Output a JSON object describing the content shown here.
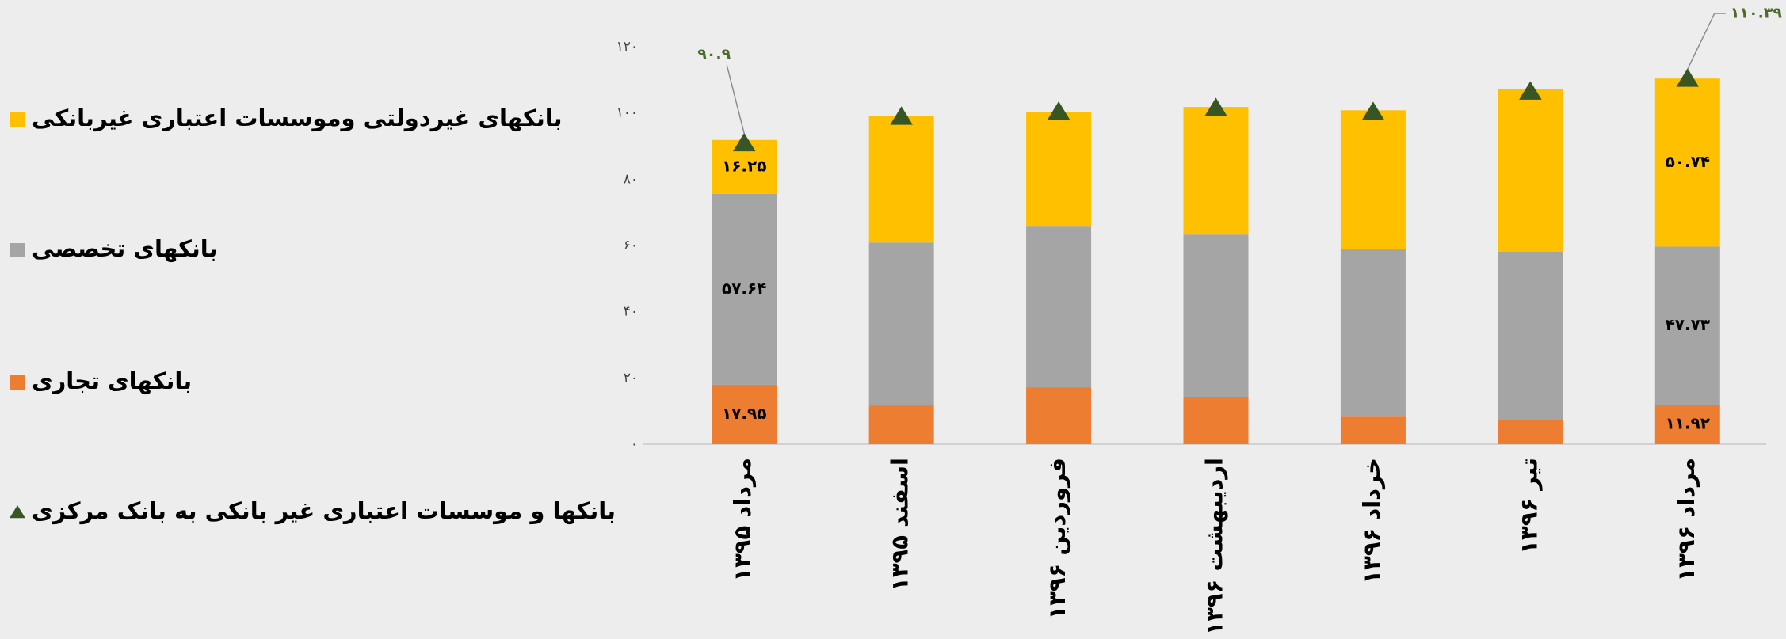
{
  "chart_data": {
    "type": "bar",
    "stacked": true,
    "categories": [
      "مرداد ۱۳۹۵",
      "اسفند ۱۳۹۵",
      "فروردین ۱۳۹۶",
      "اردیبهشت ۱۳۹۶",
      "خرداد ۱۳۹۶",
      "تیر ۱۳۹۶",
      "مرداد ۱۳۹۶"
    ],
    "series": [
      {
        "name": "بانکهای تجاری",
        "color": "#ED7D31",
        "type": "bar",
        "values": [
          17.95,
          11.7,
          17.2,
          14.1,
          8.3,
          7.6,
          11.92
        ],
        "value_labels": [
          "۱۷.۹۵",
          null,
          null,
          null,
          null,
          null,
          "۱۱.۹۲"
        ]
      },
      {
        "name": "بانکهای تخصصی",
        "color": "#A5A5A5",
        "type": "bar",
        "values": [
          57.64,
          49.2,
          48.5,
          49.2,
          50.5,
          50.5,
          47.73
        ],
        "value_labels": [
          "۵۷.۶۴",
          null,
          null,
          null,
          null,
          null,
          "۴۷.۷۳"
        ]
      },
      {
        "name": "بانکهای غیردولتی وموسسات اعتباری غیربانکی",
        "color": "#FFC000",
        "type": "bar",
        "values": [
          16.25,
          38.1,
          34.7,
          38.5,
          42.0,
          49.2,
          50.74
        ],
        "value_labels": [
          "۱۶.۲۵",
          null,
          null,
          null,
          null,
          null,
          "۵۰.۷۴"
        ]
      },
      {
        "name": "بانکها و موسسات اعتباری غیر بانکی به بانک مرکزی",
        "color": "#375623",
        "type": "marker",
        "values": [
          90.9,
          98.9,
          100.4,
          101.5,
          100.3,
          106.5,
          110.39
        ],
        "value_labels": [
          "۹۰.۹",
          null,
          null,
          null,
          null,
          null,
          "۱۱۰.۳۹"
        ]
      }
    ],
    "ylim": [
      0,
      120
    ],
    "yticks": [
      {
        "value": 0,
        "label": "۰"
      },
      {
        "value": 20,
        "label": "۲۰"
      },
      {
        "value": 40,
        "label": "۴۰"
      },
      {
        "value": 60,
        "label": "۶۰"
      },
      {
        "value": 80,
        "label": "۸۰"
      },
      {
        "value": 100,
        "label": "۱۰۰"
      },
      {
        "value": 120,
        "label": "۱۲۰"
      }
    ],
    "grid": false,
    "legend": "left"
  }
}
